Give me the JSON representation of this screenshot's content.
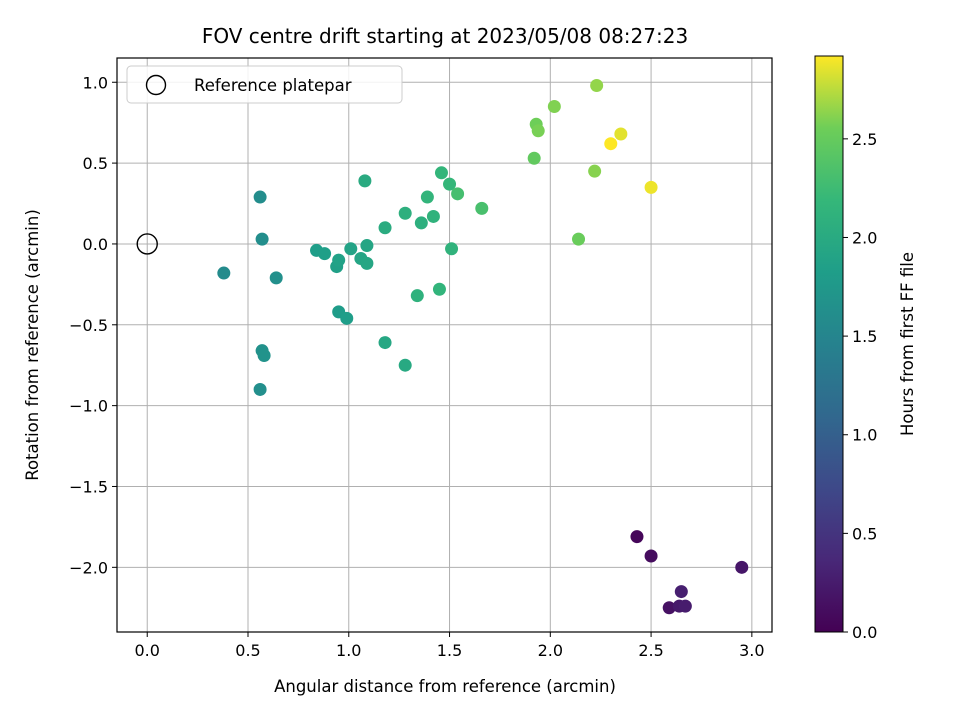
{
  "chart_data": {
    "type": "scatter",
    "title": "FOV centre drift starting at 2023/05/08 08:27:23",
    "xlabel": "Angular distance from reference (arcmin)",
    "ylabel": "Rotation from reference (arcmin)",
    "xlim": [
      -0.15,
      3.1
    ],
    "ylim": [
      -2.4,
      1.15
    ],
    "x_ticks": [
      0.0,
      0.5,
      1.0,
      1.5,
      2.0,
      2.5,
      3.0
    ],
    "x_tick_labels": [
      "0.0",
      "0.5",
      "1.0",
      "1.5",
      "2.0",
      "2.5",
      "3.0"
    ],
    "y_ticks": [
      1.0,
      0.5,
      0.0,
      -0.5,
      -1.0,
      -1.5,
      -2.0
    ],
    "y_tick_labels": [
      "1.0",
      "0.5",
      "0.0",
      "−0.5",
      "−1.0",
      "−1.5",
      "−2.0"
    ],
    "grid": true,
    "colormap": "viridis",
    "colorbar": {
      "label": "Hours from first FF file",
      "range": [
        0.0,
        2.92
      ],
      "ticks": [
        0.0,
        0.5,
        1.0,
        1.5,
        2.0,
        2.5
      ],
      "tick_labels": [
        "0.0",
        "0.5",
        "1.0",
        "1.5",
        "2.0",
        "2.5"
      ]
    },
    "legend": {
      "placement": "top-left",
      "entries": [
        {
          "label": "Reference platepar",
          "marker": "open-circle"
        }
      ]
    },
    "reference_point": {
      "x": 0.0,
      "y": 0.0
    },
    "points": [
      {
        "x": 2.43,
        "y": -1.81,
        "c": 0.05
      },
      {
        "x": 2.5,
        "y": -1.93,
        "c": 0.1
      },
      {
        "x": 2.95,
        "y": -2.0,
        "c": 0.2
      },
      {
        "x": 2.59,
        "y": -2.25,
        "c": 0.15
      },
      {
        "x": 2.64,
        "y": -2.24,
        "c": 0.22
      },
      {
        "x": 2.67,
        "y": -2.24,
        "c": 0.25
      },
      {
        "x": 2.65,
        "y": -2.15,
        "c": 0.28
      },
      {
        "x": 0.56,
        "y": 0.29,
        "c": 1.6
      },
      {
        "x": 0.57,
        "y": 0.03,
        "c": 1.62
      },
      {
        "x": 0.38,
        "y": -0.18,
        "c": 1.58
      },
      {
        "x": 0.64,
        "y": -0.21,
        "c": 1.64
      },
      {
        "x": 0.57,
        "y": -0.66,
        "c": 1.66
      },
      {
        "x": 0.58,
        "y": -0.69,
        "c": 1.68
      },
      {
        "x": 0.56,
        "y": -0.9,
        "c": 1.63
      },
      {
        "x": 0.84,
        "y": -0.04,
        "c": 1.82
      },
      {
        "x": 0.88,
        "y": -0.06,
        "c": 1.84
      },
      {
        "x": 0.94,
        "y": -0.14,
        "c": 1.86
      },
      {
        "x": 0.95,
        "y": -0.1,
        "c": 1.88
      },
      {
        "x": 0.95,
        "y": -0.42,
        "c": 1.8
      },
      {
        "x": 0.99,
        "y": -0.46,
        "c": 1.82
      },
      {
        "x": 1.01,
        "y": -0.03,
        "c": 1.9
      },
      {
        "x": 1.06,
        "y": -0.09,
        "c": 1.92
      },
      {
        "x": 1.09,
        "y": -0.12,
        "c": 1.94
      },
      {
        "x": 1.09,
        "y": -0.01,
        "c": 1.93
      },
      {
        "x": 1.08,
        "y": 0.39,
        "c": 2.0
      },
      {
        "x": 1.18,
        "y": 0.1,
        "c": 2.02
      },
      {
        "x": 1.18,
        "y": -0.61,
        "c": 1.96
      },
      {
        "x": 1.28,
        "y": -0.75,
        "c": 1.98
      },
      {
        "x": 1.28,
        "y": 0.19,
        "c": 2.08
      },
      {
        "x": 1.34,
        "y": -0.32,
        "c": 2.1
      },
      {
        "x": 1.36,
        "y": 0.13,
        "c": 2.08
      },
      {
        "x": 1.39,
        "y": 0.29,
        "c": 2.15
      },
      {
        "x": 1.42,
        "y": 0.17,
        "c": 2.12
      },
      {
        "x": 1.45,
        "y": -0.28,
        "c": 2.14
      },
      {
        "x": 1.46,
        "y": 0.44,
        "c": 2.16
      },
      {
        "x": 1.5,
        "y": 0.37,
        "c": 2.18
      },
      {
        "x": 1.51,
        "y": -0.03,
        "c": 2.12
      },
      {
        "x": 1.54,
        "y": 0.31,
        "c": 2.3
      },
      {
        "x": 1.66,
        "y": 0.22,
        "c": 2.32
      },
      {
        "x": 1.92,
        "y": 0.53,
        "c": 2.48
      },
      {
        "x": 1.93,
        "y": 0.74,
        "c": 2.55
      },
      {
        "x": 1.94,
        "y": 0.7,
        "c": 2.58
      },
      {
        "x": 2.02,
        "y": 0.85,
        "c": 2.6
      },
      {
        "x": 2.14,
        "y": 0.03,
        "c": 2.52
      },
      {
        "x": 2.22,
        "y": 0.45,
        "c": 2.62
      },
      {
        "x": 2.23,
        "y": 0.98,
        "c": 2.65
      },
      {
        "x": 2.3,
        "y": 0.62,
        "c": 2.92
      },
      {
        "x": 2.35,
        "y": 0.68,
        "c": 2.85
      },
      {
        "x": 2.5,
        "y": 0.35,
        "c": 2.88
      }
    ]
  }
}
